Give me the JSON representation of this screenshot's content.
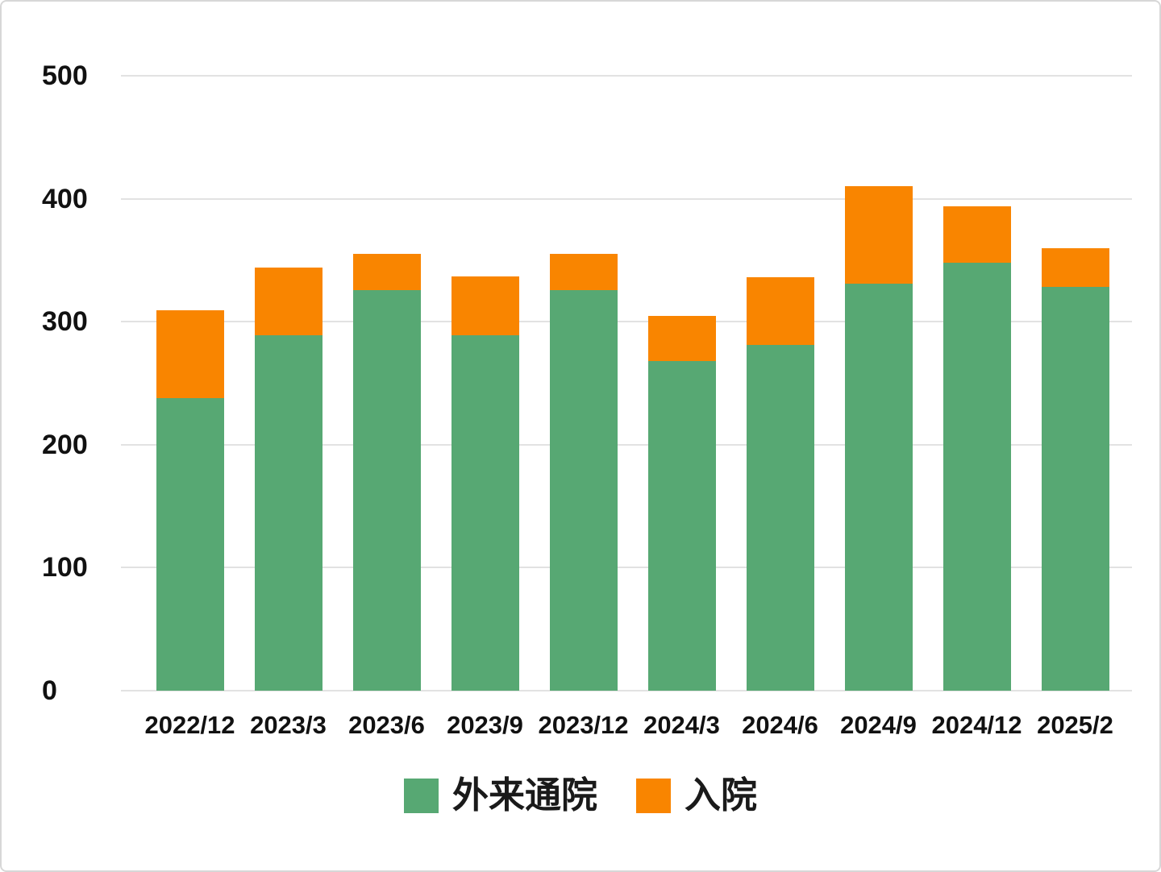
{
  "chart_data": {
    "type": "bar",
    "stacked": true,
    "title": "",
    "xlabel": "",
    "ylabel": "",
    "categories": [
      "2022/12",
      "2023/3",
      "2023/6",
      "2023/9",
      "2023/12",
      "2024/3",
      "2024/6",
      "2024/9",
      "2024/12",
      "2025/2"
    ],
    "series": [
      {
        "name": "外来通院",
        "color": "#57A873",
        "values": [
          238,
          289,
          326,
          289,
          326,
          268,
          281,
          331,
          348,
          328
        ]
      },
      {
        "name": "入院",
        "color": "#F98500",
        "values": [
          71,
          55,
          29,
          48,
          29,
          37,
          55,
          79,
          46,
          32
        ]
      }
    ],
    "ylim": [
      0,
      500
    ],
    "yticks": [
      "0",
      "100",
      "200",
      "300",
      "400",
      "500"
    ],
    "grid": true,
    "legend_position": "bottom",
    "colors": {
      "gridline": "#E2E2E2",
      "axis_text": "#111111",
      "background": "#FFFFFF",
      "page_border": "#D7D7D7"
    }
  }
}
